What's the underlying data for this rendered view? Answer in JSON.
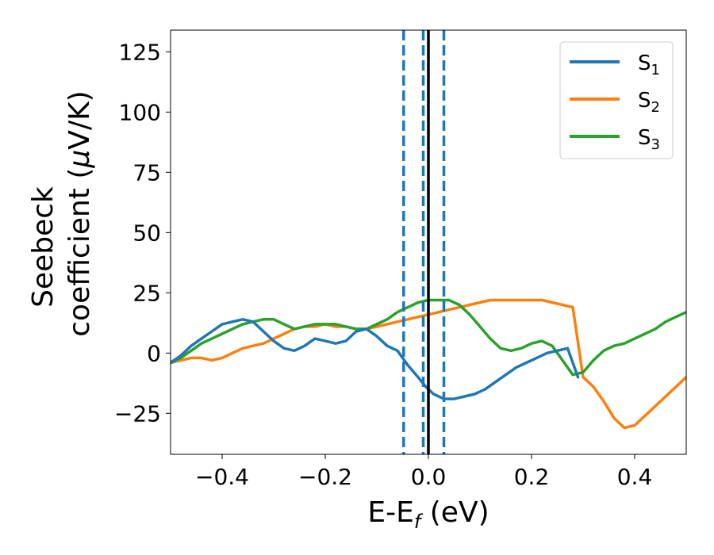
{
  "chart_data": {
    "type": "line",
    "title": "",
    "xlabel": {
      "base": "E-E",
      "sub": "f",
      "rest": " (eV)"
    },
    "ylabel": {
      "line1": "Seebeck",
      "line2_pre": "coefficient  (",
      "mu": "μ",
      "line2_post": "V/K)"
    },
    "xlim": [
      -0.5,
      0.5
    ],
    "ylim": [
      -42,
      134
    ],
    "xticks": [
      -0.4,
      -0.2,
      0.0,
      0.2,
      0.4
    ],
    "xtick_labels": [
      "−0.4",
      "−0.2",
      "0.0",
      "0.2",
      "0.4"
    ],
    "yticks": [
      -25,
      0,
      25,
      50,
      75,
      100,
      125
    ],
    "ytick_labels": [
      "−25",
      "0",
      "25",
      "50",
      "75",
      "100",
      "125"
    ],
    "vlines": [
      {
        "x": 0.0,
        "color": "#000000",
        "style": "solid"
      },
      {
        "x": -0.048,
        "color": "#1f77b4",
        "style": "dashed"
      },
      {
        "x": -0.01,
        "color": "#1f77b4",
        "style": "dashed"
      },
      {
        "x": 0.03,
        "color": "#1f77b4",
        "style": "dashed"
      }
    ],
    "legend": {
      "position": "top-right"
    },
    "series": [
      {
        "name": "S",
        "sub": "1",
        "color": "#1f77b4",
        "x": [
          -0.5,
          -0.48,
          -0.46,
          -0.44,
          -0.42,
          -0.4,
          -0.38,
          -0.36,
          -0.34,
          -0.32,
          -0.3,
          -0.28,
          -0.26,
          -0.24,
          -0.22,
          -0.2,
          -0.18,
          -0.16,
          -0.14,
          -0.12,
          -0.1,
          -0.08,
          -0.06,
          -0.04,
          -0.02,
          -0.005,
          0.01,
          0.03,
          0.05,
          0.07,
          0.09,
          0.11,
          0.13,
          0.15,
          0.17,
          0.19,
          0.21,
          0.23,
          0.25,
          0.27,
          0.29
        ],
        "y": [
          -4,
          -1,
          3,
          6,
          9,
          12,
          13,
          14,
          13,
          9,
          5,
          2,
          1,
          3,
          6,
          5,
          4,
          5,
          9,
          10,
          7,
          3,
          1,
          -5,
          -10,
          -14,
          -17,
          -19,
          -19,
          -18,
          -17,
          -15,
          -12,
          -9,
          -6,
          -4,
          -2,
          0,
          1,
          2,
          -10
        ]
      },
      {
        "name": "S",
        "sub": "2",
        "color": "#ff7f0e",
        "x": [
          -0.5,
          -0.48,
          -0.46,
          -0.44,
          -0.42,
          -0.4,
          -0.38,
          -0.36,
          -0.34,
          -0.32,
          -0.3,
          -0.28,
          -0.26,
          -0.24,
          -0.22,
          -0.2,
          -0.18,
          -0.16,
          -0.14,
          -0.12,
          -0.1,
          -0.08,
          -0.06,
          -0.04,
          -0.02,
          0.0,
          0.02,
          0.04,
          0.06,
          0.08,
          0.1,
          0.12,
          0.14,
          0.16,
          0.18,
          0.2,
          0.22,
          0.24,
          0.26,
          0.28,
          0.3,
          0.32,
          0.34,
          0.36,
          0.38,
          0.4,
          0.42,
          0.44,
          0.46,
          0.48,
          0.5
        ],
        "y": [
          -4,
          -3,
          -2,
          -2,
          -3,
          -2,
          0,
          2,
          3,
          4,
          6,
          8,
          10,
          11,
          11,
          12,
          11,
          11,
          10,
          10,
          11,
          12,
          13,
          14,
          15,
          16,
          17,
          18,
          19,
          20,
          21,
          22,
          22,
          22,
          22,
          22,
          22,
          21,
          20,
          19,
          -10,
          -14,
          -20,
          -27,
          -31,
          -30,
          -26,
          -22,
          -18,
          -14,
          -10
        ]
      },
      {
        "name": "S",
        "sub": "3",
        "color": "#2ca02c",
        "x": [
          -0.5,
          -0.48,
          -0.46,
          -0.44,
          -0.42,
          -0.4,
          -0.38,
          -0.36,
          -0.34,
          -0.32,
          -0.3,
          -0.28,
          -0.26,
          -0.24,
          -0.22,
          -0.2,
          -0.18,
          -0.16,
          -0.14,
          -0.12,
          -0.1,
          -0.08,
          -0.06,
          -0.04,
          -0.02,
          0.0,
          0.02,
          0.04,
          0.06,
          0.08,
          0.1,
          0.12,
          0.14,
          0.16,
          0.18,
          0.2,
          0.22,
          0.24,
          0.26,
          0.28,
          0.3,
          0.32,
          0.34,
          0.36,
          0.38,
          0.4,
          0.42,
          0.44,
          0.46,
          0.48,
          0.5
        ],
        "y": [
          -4,
          -2,
          1,
          4,
          6,
          8,
          10,
          12,
          13,
          14,
          14,
          12,
          10,
          11,
          12,
          12,
          12,
          11,
          10,
          10,
          12,
          14,
          17,
          19,
          21,
          22,
          22,
          22,
          20,
          16,
          11,
          6,
          2,
          1,
          2,
          4,
          5,
          3,
          -3,
          -9,
          -8,
          -3,
          1,
          3,
          4,
          6,
          8,
          10,
          13,
          15,
          17
        ]
      }
    ]
  }
}
